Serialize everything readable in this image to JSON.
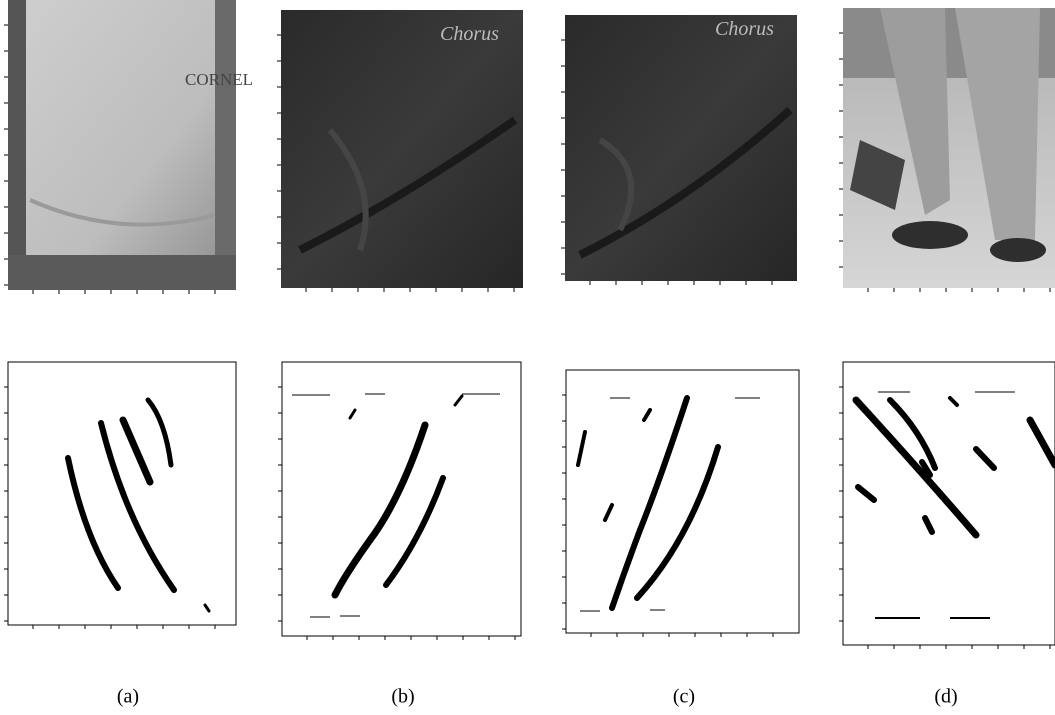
{
  "panels": [
    {
      "label": "(a)",
      "logo": "CORNEL"
    },
    {
      "label": "(b)",
      "logo": "Chorus"
    },
    {
      "label": "(c)",
      "logo": "Chorus"
    },
    {
      "label": "(d)"
    }
  ]
}
